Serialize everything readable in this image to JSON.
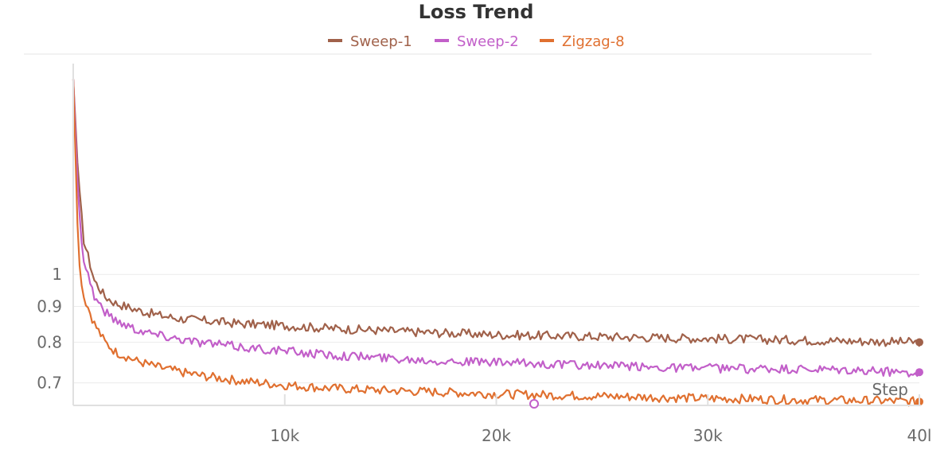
{
  "chart_data": {
    "type": "line",
    "title": "Loss Trend",
    "xlabel": "Step",
    "ylabel": "",
    "legend_position": "top-center",
    "grid": true,
    "y_scale": "log",
    "xlim": [
      0,
      40000
    ],
    "ylim": [
      0.65,
      2.0
    ],
    "x_ticks": [
      10000,
      20000,
      30000,
      40000
    ],
    "x_tick_labels": [
      "10k",
      "20k",
      "30k",
      "40l"
    ],
    "y_ticks": [
      0.7,
      0.8,
      0.9,
      1
    ],
    "y_tick_labels": [
      "0.7",
      "0.8",
      "0.9",
      "1"
    ],
    "x": [
      0,
      250,
      500,
      1000,
      1500,
      2000,
      3000,
      4000,
      5000,
      6000,
      8000,
      10000,
      12000,
      14000,
      16000,
      18000,
      20000,
      22000,
      24000,
      26000,
      28000,
      30000,
      32000,
      34000,
      36000,
      38000,
      40000
    ],
    "series": [
      {
        "name": "Sweep-1",
        "color": "#a0614a",
        "values": [
          1.9,
          1.35,
          1.12,
          0.98,
          0.93,
          0.91,
          0.89,
          0.875,
          0.865,
          0.86,
          0.85,
          0.845,
          0.838,
          0.833,
          0.828,
          0.824,
          0.82,
          0.818,
          0.816,
          0.814,
          0.812,
          0.81,
          0.808,
          0.806,
          0.804,
          0.802,
          0.8
        ]
      },
      {
        "name": "Sweep-2",
        "color": "#c25fc9",
        "values": [
          1.9,
          1.25,
          1.05,
          0.93,
          0.885,
          0.86,
          0.835,
          0.82,
          0.81,
          0.8,
          0.787,
          0.777,
          0.768,
          0.762,
          0.757,
          0.752,
          0.748,
          0.745,
          0.742,
          0.739,
          0.737,
          0.735,
          0.733,
          0.731,
          0.729,
          0.727,
          0.725
        ]
      },
      {
        "name": "Zigzag-8",
        "color": "#e07030",
        "values": [
          1.9,
          1.05,
          0.93,
          0.85,
          0.8,
          0.775,
          0.752,
          0.737,
          0.726,
          0.717,
          0.704,
          0.695,
          0.688,
          0.684,
          0.681,
          0.678,
          0.675,
          0.673,
          0.671,
          0.669,
          0.667,
          0.665,
          0.664,
          0.662,
          0.661,
          0.66,
          0.658
        ]
      }
    ]
  }
}
